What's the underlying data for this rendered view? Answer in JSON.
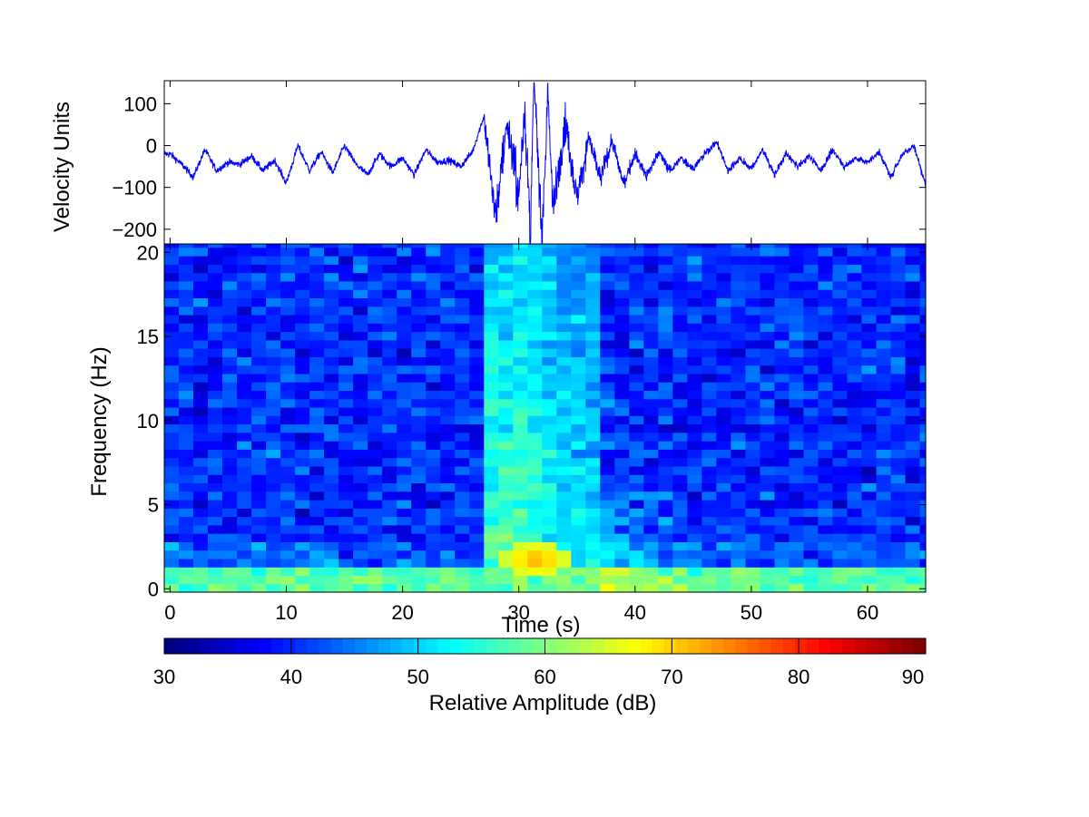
{
  "chart_data": [
    {
      "type": "line",
      "panel": "seismogram",
      "ylabel": "Velocity Units",
      "xlim": [
        -0.5,
        65
      ],
      "ylim": [
        -235,
        155
      ],
      "yticks": [
        100,
        0,
        -100,
        -200
      ],
      "ytick_labels": [
        "100",
        "0",
        "−100",
        "−200"
      ],
      "xticks": [
        0,
        10,
        20,
        30,
        40,
        50,
        60
      ],
      "line_color": "#0000ff",
      "sample_rate_hz": 40,
      "baseline": -35,
      "event": {
        "onset_s": 27,
        "peak_s": 31.3,
        "peak_max": 150,
        "peak_min": -235
      },
      "trace_points": [
        [
          0,
          -20
        ],
        [
          1,
          -45
        ],
        [
          2,
          -75
        ],
        [
          3,
          -10
        ],
        [
          4,
          -60
        ],
        [
          5,
          -40
        ],
        [
          6,
          -45
        ],
        [
          7,
          -25
        ],
        [
          8,
          -60
        ],
        [
          9,
          -35
        ],
        [
          10,
          -90
        ],
        [
          11,
          0
        ],
        [
          12,
          -60
        ],
        [
          13,
          -15
        ],
        [
          14,
          -65
        ],
        [
          15,
          0
        ],
        [
          16,
          -45
        ],
        [
          17,
          -70
        ],
        [
          18,
          -20
        ],
        [
          19,
          -50
        ],
        [
          20,
          -30
        ],
        [
          21,
          -70
        ],
        [
          22,
          -10
        ],
        [
          23,
          -40
        ],
        [
          24,
          -35
        ],
        [
          25,
          -50
        ],
        [
          26,
          -15
        ],
        [
          27,
          70
        ],
        [
          28,
          -170
        ],
        [
          29,
          60
        ],
        [
          30,
          -130
        ],
        [
          30.5,
          100
        ],
        [
          31,
          -235
        ],
        [
          31.3,
          150
        ],
        [
          32,
          -200
        ],
        [
          32.5,
          110
        ],
        [
          33,
          -150
        ],
        [
          34,
          60
        ],
        [
          35,
          -130
        ],
        [
          36,
          20
        ],
        [
          37,
          -80
        ],
        [
          38,
          10
        ],
        [
          39,
          -90
        ],
        [
          40,
          -20
        ],
        [
          41,
          -75
        ],
        [
          42,
          -15
        ],
        [
          43,
          -60
        ],
        [
          44,
          -30
        ],
        [
          45,
          -55
        ],
        [
          46,
          -20
        ],
        [
          47,
          10
        ],
        [
          48,
          -60
        ],
        [
          49,
          -30
        ],
        [
          50,
          -55
        ],
        [
          51,
          -10
        ],
        [
          52,
          -70
        ],
        [
          53,
          -20
        ],
        [
          54,
          -50
        ],
        [
          55,
          -25
        ],
        [
          56,
          -60
        ],
        [
          57,
          -10
        ],
        [
          58,
          -50
        ],
        [
          59,
          -30
        ],
        [
          60,
          -40
        ],
        [
          61,
          -15
        ],
        [
          62,
          -75
        ],
        [
          63,
          -20
        ],
        [
          64,
          0
        ],
        [
          65,
          -95
        ]
      ]
    },
    {
      "type": "heatmap",
      "panel": "spectrogram",
      "xlabel": "Time (s)",
      "ylabel": "Frequency (Hz)",
      "xlim": [
        -0.5,
        65
      ],
      "ylim": [
        -0.2,
        20.5
      ],
      "xticks": [
        0,
        10,
        20,
        30,
        40,
        50,
        60
      ],
      "xtick_labels": [
        "0",
        "10",
        "20",
        "30",
        "40",
        "50",
        "60"
      ],
      "yticks": [
        0,
        5,
        10,
        15,
        20
      ],
      "ytick_labels": [
        "0",
        "5",
        "10",
        "15",
        "20"
      ],
      "time_bin_s": 1.25,
      "freq_bin_hz": 0.5,
      "background_db": 40,
      "low_freq_band": {
        "max_hz": 1.5,
        "level_db": 58
      },
      "event": {
        "start_s": 26.5,
        "end_s": 37,
        "max_hz": 20,
        "decay_s": 2.5,
        "amplitude_db": 18
      },
      "coda": {
        "start_s": 37,
        "end_s": 45,
        "max_hz": 6,
        "amplitude_db": 7
      },
      "hot_spot": {
        "time_s": 31.5,
        "freq_hz": 1.75,
        "level_db": 73
      },
      "noise_db": 4
    },
    {
      "type": "colorbar",
      "panel": "colorbar",
      "label": "Relative Amplitude  (dB)",
      "colormap": "jet",
      "range": [
        30,
        90
      ],
      "ticks": [
        30,
        40,
        50,
        60,
        70,
        80,
        90
      ],
      "tick_labels": [
        "30",
        "40",
        "50",
        "60",
        "70",
        "80",
        "90"
      ],
      "steps": 64
    }
  ]
}
